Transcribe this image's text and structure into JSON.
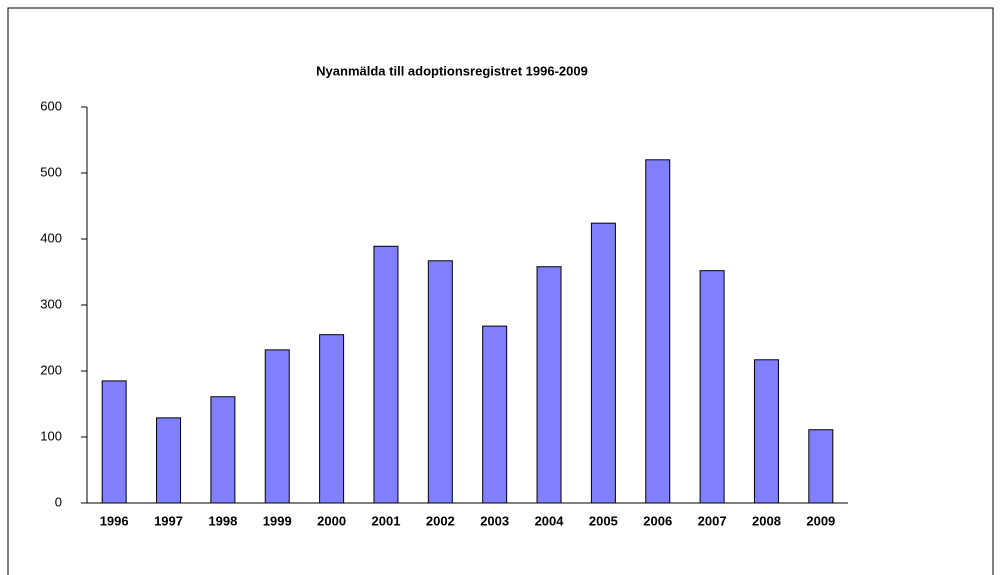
{
  "chart_data": {
    "type": "bar",
    "title": "Nyanmälda till adoptionsregistret 1996-2009",
    "categories": [
      "1996",
      "1997",
      "1998",
      "1999",
      "2000",
      "2001",
      "2002",
      "2003",
      "2004",
      "2005",
      "2006",
      "2007",
      "2008",
      "2009"
    ],
    "values": [
      185,
      129,
      161,
      232,
      255,
      389,
      367,
      268,
      358,
      424,
      520,
      352,
      217,
      111
    ],
    "color": "#8080ff",
    "ylim": [
      0,
      600
    ],
    "yticks": [
      0,
      100,
      200,
      300,
      400,
      500,
      600
    ],
    "grid": false
  }
}
